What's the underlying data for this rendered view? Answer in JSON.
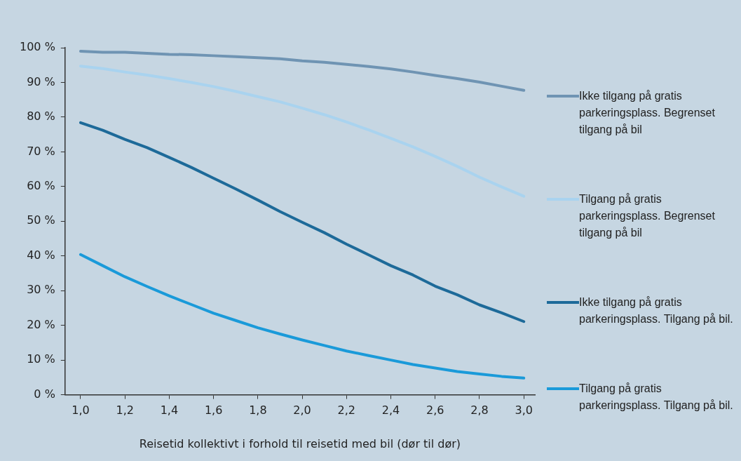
{
  "chart_data": {
    "type": "line",
    "xlabel": "Reisetid kollektivt i forhold til reisetid med bil (dør til dør)",
    "x": [
      1.0,
      1.1,
      1.2,
      1.3,
      1.4,
      1.5,
      1.6,
      1.7,
      1.8,
      1.9,
      2.0,
      2.1,
      2.2,
      2.3,
      2.4,
      2.5,
      2.6,
      2.7,
      2.8,
      2.9,
      3.0
    ],
    "series": [
      {
        "name": "Ikke tilgang på gratis parkeringsplass. Begrenset tilgang på bil",
        "color": "#6f94b3",
        "values": [
          99,
          98.7,
          98.7,
          98.4,
          98.1,
          98.0,
          97.7,
          97.4,
          97.1,
          96.8,
          96.2,
          95.8,
          95.2,
          94.6,
          93.9,
          93.0,
          92.0,
          91.1,
          90.1,
          88.9,
          87.7
        ]
      },
      {
        "name": "Tilgang på gratis parkeringsplass. Begrenset tilgang på bil",
        "color": "#a9d3ef",
        "values": [
          94.7,
          94.0,
          93.0,
          92.1,
          91.1,
          90.0,
          88.8,
          87.4,
          85.9,
          84.4,
          82.6,
          80.7,
          78.6,
          76.3,
          73.9,
          71.4,
          68.7,
          65.8,
          62.7,
          59.9,
          57.2
        ]
      },
      {
        "name": "Ikke tilgang på gratis parkeringsplass. Tilgang på bil.",
        "color": "#1d6a99",
        "values": [
          78.4,
          76.2,
          73.6,
          71.2,
          68.4,
          65.5,
          62.4,
          59.3,
          56.1,
          52.8,
          49.7,
          46.7,
          43.4,
          40.3,
          37.2,
          34.5,
          31.3,
          28.8,
          25.9,
          23.6,
          21.1
        ]
      },
      {
        "name": "Tilgang på gratis parkeringsplass. Tilgang på bil.",
        "color": "#1a9ad9",
        "values": [
          40.4,
          37.2,
          34.0,
          31.2,
          28.5,
          26.0,
          23.5,
          21.4,
          19.3,
          17.5,
          15.8,
          14.2,
          12.6,
          11.3,
          10.0,
          8.7,
          7.7,
          6.7,
          6.0,
          5.3,
          4.8
        ]
      }
    ],
    "xlim": [
      0.93,
      3.05
    ],
    "xticks": [
      {
        "value": 1.0,
        "label": "1,0"
      },
      {
        "value": 1.2,
        "label": "1,2"
      },
      {
        "value": 1.4,
        "label": "1,4"
      },
      {
        "value": 1.6,
        "label": "1,6"
      },
      {
        "value": 1.8,
        "label": "1,8"
      },
      {
        "value": 2.0,
        "label": "2,0"
      },
      {
        "value": 2.2,
        "label": "2,2"
      },
      {
        "value": 2.4,
        "label": "2,4"
      },
      {
        "value": 2.6,
        "label": "2,6"
      },
      {
        "value": 2.8,
        "label": "2,8"
      },
      {
        "value": 3.0,
        "label": "3,0"
      }
    ],
    "ylim": [
      0,
      100
    ],
    "yticks": [
      {
        "value": 0,
        "label": "0 %"
      },
      {
        "value": 10,
        "label": "10 %"
      },
      {
        "value": 20,
        "label": "20 %"
      },
      {
        "value": 30,
        "label": "30 %"
      },
      {
        "value": 40,
        "label": "40 %"
      },
      {
        "value": 50,
        "label": "50 %"
      },
      {
        "value": 60,
        "label": "60 %"
      },
      {
        "value": 70,
        "label": "70 %"
      },
      {
        "value": 80,
        "label": "80 %"
      },
      {
        "value": 90,
        "label": "90 %"
      },
      {
        "value": 100,
        "label": "100 %"
      }
    ],
    "grid": false,
    "legend": "right",
    "marker": "none",
    "line_style": "solid"
  }
}
